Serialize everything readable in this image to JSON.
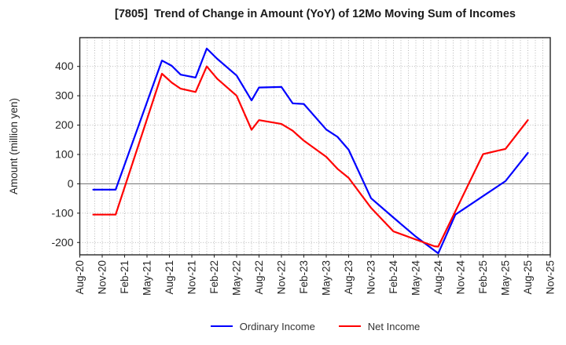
{
  "chart_data": {
    "type": "line",
    "title": "[7805]  Trend of Change in Amount (YoY) of 12Mo Moving Sum of Incomes",
    "ylabel": "Amount (million yen)",
    "x_tick_labels": [
      "Aug-20",
      "Nov-20",
      "Feb-21",
      "May-21",
      "Aug-21",
      "Nov-21",
      "Feb-22",
      "May-22",
      "Aug-22",
      "Nov-22",
      "Feb-23",
      "May-23",
      "Aug-23",
      "Nov-23",
      "Feb-24",
      "May-24",
      "Aug-24",
      "Nov-24",
      "Feb-25",
      "May-25",
      "Aug-25",
      "Nov-25"
    ],
    "months_per_tick": 3,
    "x_range_months": [
      0,
      63
    ],
    "ylim": [
      -242,
      498
    ],
    "y_ticks": [
      400,
      300,
      200,
      100,
      0,
      -100,
      -200
    ],
    "grid": {
      "vertical": "monthly dotted",
      "horizontal": "every 100 dotted",
      "zero_line": "solid"
    },
    "legend_position": "bottom-center",
    "colors": {
      "frame": "#262626",
      "tick_text": "#262626",
      "grid_dotted": "#b0b0b0",
      "zero_line": "#7f7f7f",
      "background": "#ffffff",
      "ordinary_income": "#0000ff",
      "net_income": "#ff0000"
    },
    "series": [
      {
        "name": "Ordinary Income",
        "color": "#0000ff",
        "points": [
          [
            1.8,
            -20
          ],
          [
            4.8,
            -20
          ],
          [
            11,
            420
          ],
          [
            12.3,
            402
          ],
          [
            13.5,
            372
          ],
          [
            15.5,
            362
          ],
          [
            17,
            461
          ],
          [
            18.4,
            426
          ],
          [
            21,
            369
          ],
          [
            23,
            284
          ],
          [
            24,
            328
          ],
          [
            27,
            330
          ],
          [
            28.5,
            274
          ],
          [
            30,
            272
          ],
          [
            33,
            185
          ],
          [
            34.5,
            160
          ],
          [
            36,
            116
          ],
          [
            39,
            -49
          ],
          [
            42,
            -115
          ],
          [
            45,
            -180
          ],
          [
            48,
            -237
          ],
          [
            50.3,
            -105
          ],
          [
            54,
            -42
          ],
          [
            57,
            9
          ],
          [
            60,
            105
          ]
        ]
      },
      {
        "name": "Net Income",
        "color": "#ff0000",
        "points": [
          [
            1.8,
            -105
          ],
          [
            4.8,
            -105
          ],
          [
            11,
            375
          ],
          [
            12.3,
            345
          ],
          [
            13.5,
            324
          ],
          [
            15.5,
            313
          ],
          [
            17,
            400
          ],
          [
            18.4,
            358
          ],
          [
            21,
            300
          ],
          [
            23,
            184
          ],
          [
            24,
            217
          ],
          [
            27,
            204
          ],
          [
            28.5,
            181
          ],
          [
            30,
            147
          ],
          [
            33,
            92
          ],
          [
            34.5,
            51
          ],
          [
            36,
            20
          ],
          [
            39,
            -82
          ],
          [
            42,
            -162
          ],
          [
            45,
            -190
          ],
          [
            47.5,
            -213
          ],
          [
            48,
            -214
          ],
          [
            54,
            101
          ],
          [
            57,
            119
          ],
          [
            60,
            217
          ]
        ]
      }
    ]
  }
}
